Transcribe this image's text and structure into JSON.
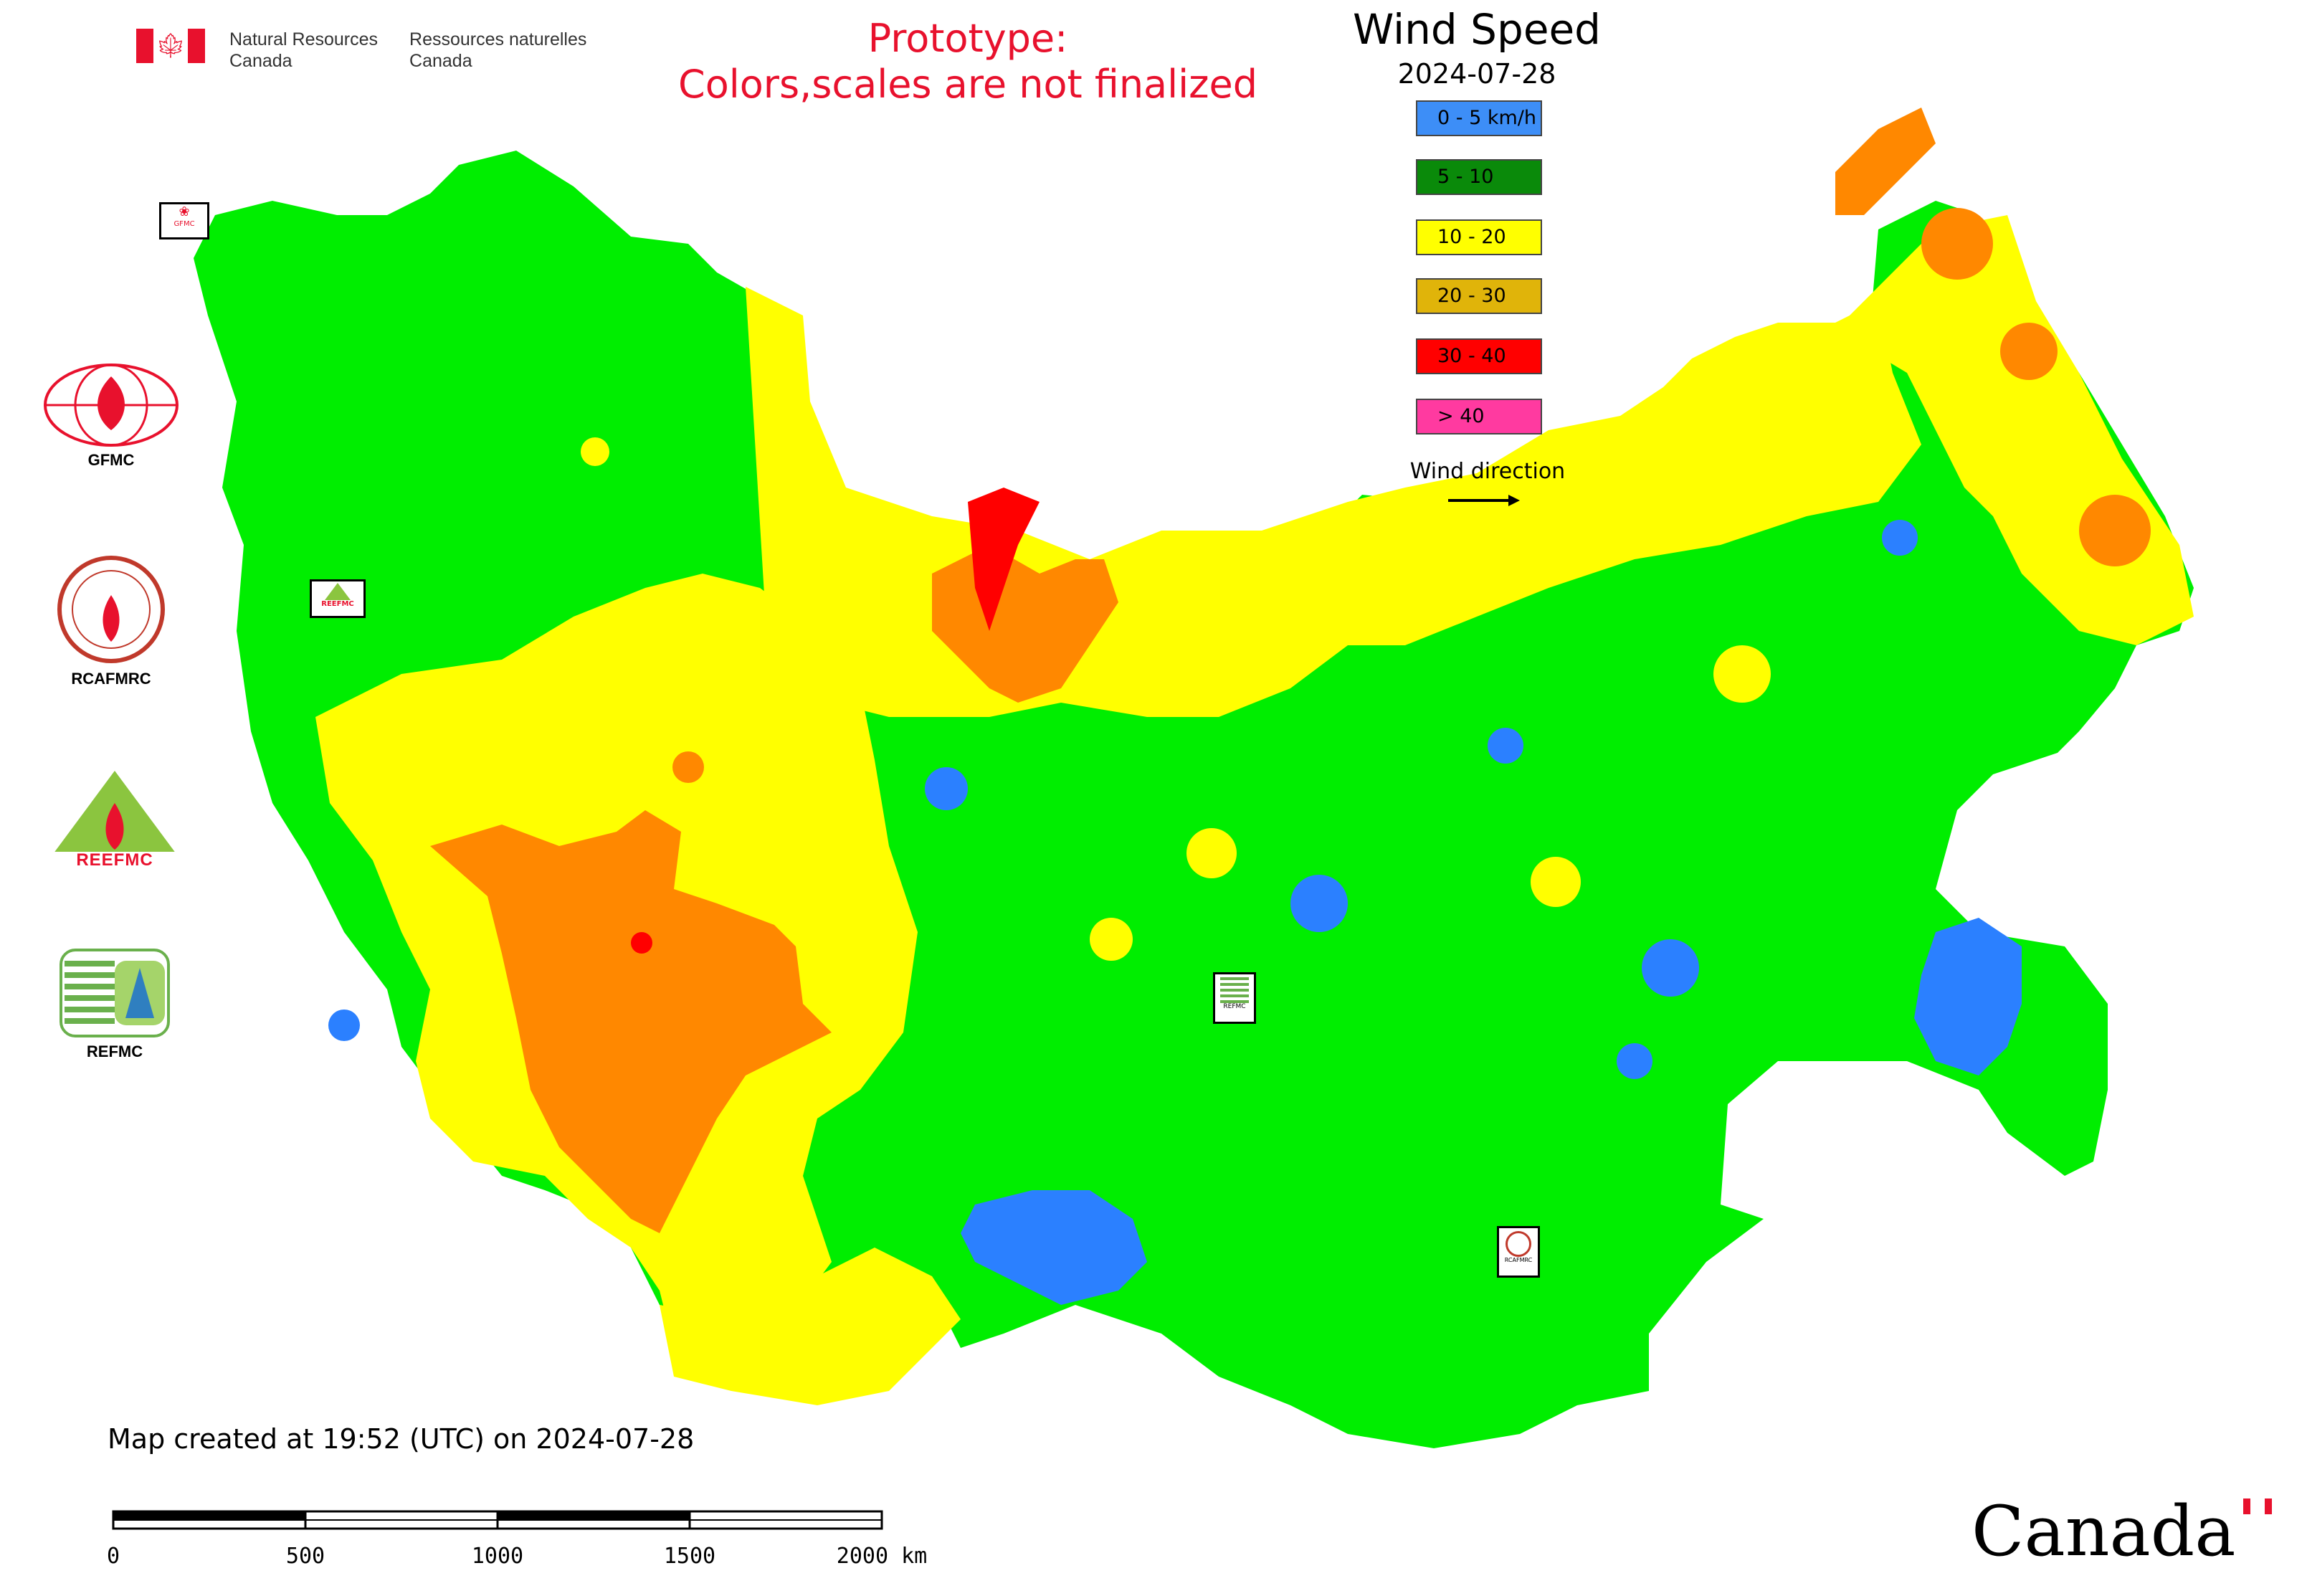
{
  "header": {
    "org_en_line1": "Natural Resources",
    "org_en_line2": "Canada",
    "org_fr_line1": "Ressources naturelles",
    "org_fr_line2": "Canada",
    "prototype_line1": "Prototype:",
    "prototype_line2": "Colors,scales are not finalized"
  },
  "legend": {
    "title": "Wind Speed",
    "date": "2024-07-28",
    "items": [
      {
        "label": "0 - 5 km/h",
        "color": "#3d8ef7"
      },
      {
        "label": "5 - 10",
        "color": "#0a8a0a"
      },
      {
        "label": "10 - 20",
        "color": "#ffff00"
      },
      {
        "label": "20 - 30",
        "color": "#e0b40a"
      },
      {
        "label": "30 - 40",
        "color": "#ff0000"
      },
      {
        "label": "> 40",
        "color": "#ff3aa0"
      }
    ],
    "wind_direction_label": "Wind direction"
  },
  "map_colors": {
    "calm": "#2b80ff",
    "light": "#00ee00",
    "moderate": "#ffff00",
    "fresh": "#ff8800",
    "strong": "#ff0000",
    "water": "#ffffff",
    "border": "#cc66cc"
  },
  "side_logos": {
    "gfmc": "GFMC",
    "rcafmrc": "RCAFMRC",
    "reefmc_logo_text": "REEFMC",
    "refmc": "REFMC"
  },
  "map_markers": {
    "gfmc": "GFMC",
    "reefmc": "REEFMC",
    "refmc": "REFMC",
    "rcafmrc": "RCAFMRC"
  },
  "footer": {
    "created": "Map created at 19:52 (UTC) on 2024-07-28",
    "scale_ticks": [
      "0",
      "500",
      "1000",
      "1500",
      "2000 km"
    ],
    "wordmark": "Canada"
  }
}
